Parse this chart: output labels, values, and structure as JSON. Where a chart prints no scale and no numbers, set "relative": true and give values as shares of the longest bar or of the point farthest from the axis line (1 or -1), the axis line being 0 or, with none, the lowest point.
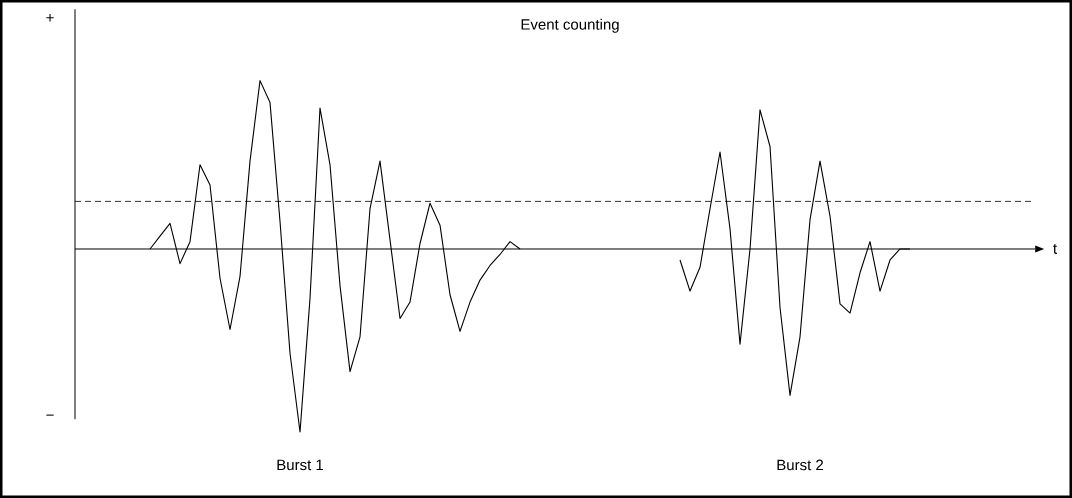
{
  "chart_data": {
    "type": "line",
    "title": "Event counting",
    "relative": true,
    "annotations": [
      "+",
      "−",
      "Burst 1",
      "Burst 2",
      "t"
    ],
    "ref_lines": [
      {
        "axis": "y",
        "value": 0.26,
        "line_style": "dashed"
      }
    ],
    "categories": [
      null,
      null,
      null,
      null,
      null,
      null,
      null,
      null,
      null,
      null,
      null,
      null,
      null,
      null,
      null,
      null,
      null,
      null,
      null,
      null,
      null,
      null,
      null,
      null,
      null,
      null,
      null,
      null,
      null,
      null,
      null,
      null,
      null,
      null,
      null,
      null,
      null,
      null,
      null,
      null,
      null,
      null,
      null,
      null,
      null,
      null,
      null,
      null,
      null,
      null,
      null,
      null,
      null,
      null,
      null,
      null,
      null,
      null,
      null,
      null,
      null,
      null,
      null,
      null,
      null,
      null,
      null,
      null,
      null,
      null,
      null,
      null,
      null,
      null,
      null,
      null,
      null
    ],
    "series": [
      {
        "color": "#000000",
        "values": [
          0,
          0.07,
          0.14,
          -0.08,
          0.04,
          0.46,
          0.35,
          -0.16,
          -0.44,
          -0.15,
          0.48,
          0.92,
          0.8,
          0.15,
          -0.57,
          -1.0,
          -0.27,
          0.77,
          0.46,
          -0.2,
          -0.67,
          -0.48,
          0.22,
          0.48,
          0.05,
          -0.38,
          -0.29,
          0.03,
          0.25,
          0.13,
          -0.25,
          -0.45,
          -0.29,
          -0.17,
          -0.09,
          -0.03,
          0.04,
          0,
          null,
          null,
          null,
          null,
          null,
          null,
          null,
          null,
          null,
          null,
          null,
          null,
          null,
          null,
          null,
          null,
          null,
          null,
          null,
          null,
          null,
          null,
          null,
          null,
          null,
          null,
          null,
          null,
          null,
          null,
          null,
          null,
          null,
          null,
          null,
          null,
          null,
          null,
          null
        ]
      },
      {
        "color": "#000000",
        "values": [
          null,
          null,
          null,
          null,
          null,
          null,
          null,
          null,
          null,
          null,
          null,
          null,
          null,
          null,
          null,
          null,
          null,
          null,
          null,
          null,
          null,
          null,
          null,
          null,
          null,
          null,
          null,
          null,
          null,
          null,
          null,
          null,
          null,
          null,
          null,
          null,
          null,
          null,
          null,
          null,
          null,
          null,
          null,
          null,
          null,
          null,
          null,
          null,
          null,
          null,
          null,
          null,
          null,
          -0.06,
          -0.23,
          -0.1,
          0.22,
          0.53,
          0.11,
          -0.52,
          0,
          0.76,
          0.56,
          -0.32,
          -0.8,
          -0.48,
          0.16,
          0.48,
          0.18,
          -0.3,
          -0.35,
          -0.13,
          0.04,
          -0.23,
          -0.06,
          0,
          0
        ]
      }
    ]
  }
}
